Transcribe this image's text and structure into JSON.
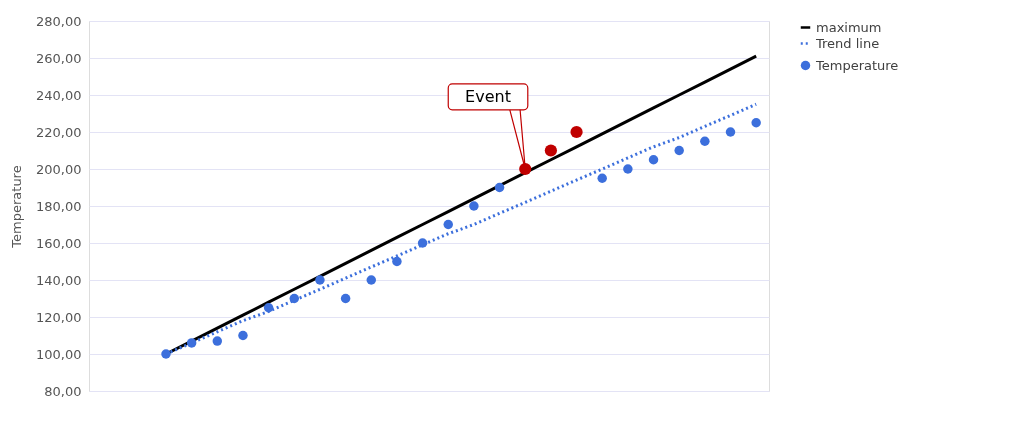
{
  "chart_data": {
    "type": "scatter",
    "ylabel": "Temperature",
    "categories": [
      null,
      null,
      null,
      null,
      null,
      null,
      null,
      null,
      null,
      null,
      null,
      null,
      null,
      null,
      null,
      null,
      null,
      null,
      null,
      null,
      null,
      null,
      null,
      null
    ],
    "series": [
      {
        "name": "Temperature",
        "color": "#3c6fdc",
        "values": [
          100,
          106,
          107,
          110,
          125,
          130,
          140,
          130,
          140,
          150,
          160,
          170,
          180,
          190,
          null,
          null,
          null,
          195,
          200,
          205,
          210,
          215,
          220,
          225
        ]
      },
      {
        "color": "#c00000",
        "values": [
          null,
          null,
          null,
          null,
          null,
          null,
          null,
          null,
          null,
          null,
          null,
          null,
          null,
          null,
          200,
          210,
          220,
          null,
          null,
          null,
          null,
          null,
          null,
          null
        ]
      },
      {
        "name": "maximum",
        "type": "line",
        "marker": "none",
        "color": "#000000",
        "line_style": "solid",
        "values": [
          100,
          107,
          114,
          121,
          128,
          135,
          142,
          149,
          156,
          163,
          170,
          177,
          184,
          191,
          198,
          205,
          212,
          219,
          226,
          233,
          240,
          247,
          254,
          261
        ]
      },
      {
        "name": "Trend line",
        "type": "line",
        "marker": "none",
        "color": "#3c6fdc",
        "line_style": "dotted",
        "values": [
          100,
          106,
          112,
          118,
          123,
          129,
          135,
          141,
          147,
          153,
          159,
          165,
          170,
          176,
          182,
          188,
          194,
          200,
          206,
          212,
          217,
          223,
          229,
          235
        ]
      }
    ],
    "annotations": [
      "Event"
    ],
    "ylim": [
      80,
      280
    ],
    "yticks": [
      {
        "value": 80,
        "label": "80,00"
      },
      {
        "value": 100,
        "label": "100,00"
      },
      {
        "value": 120,
        "label": "120,00"
      },
      {
        "value": 140,
        "label": "140,00"
      },
      {
        "value": 160,
        "label": "160,00"
      },
      {
        "value": 180,
        "label": "180,00"
      },
      {
        "value": 200,
        "label": "200,00"
      },
      {
        "value": 220,
        "label": "220,00"
      },
      {
        "value": 240,
        "label": "240,00"
      },
      {
        "value": 260,
        "label": "260,00"
      },
      {
        "value": 280,
        "label": "280,00"
      }
    ],
    "grid": "y",
    "legend": "right",
    "marker": "circle"
  }
}
